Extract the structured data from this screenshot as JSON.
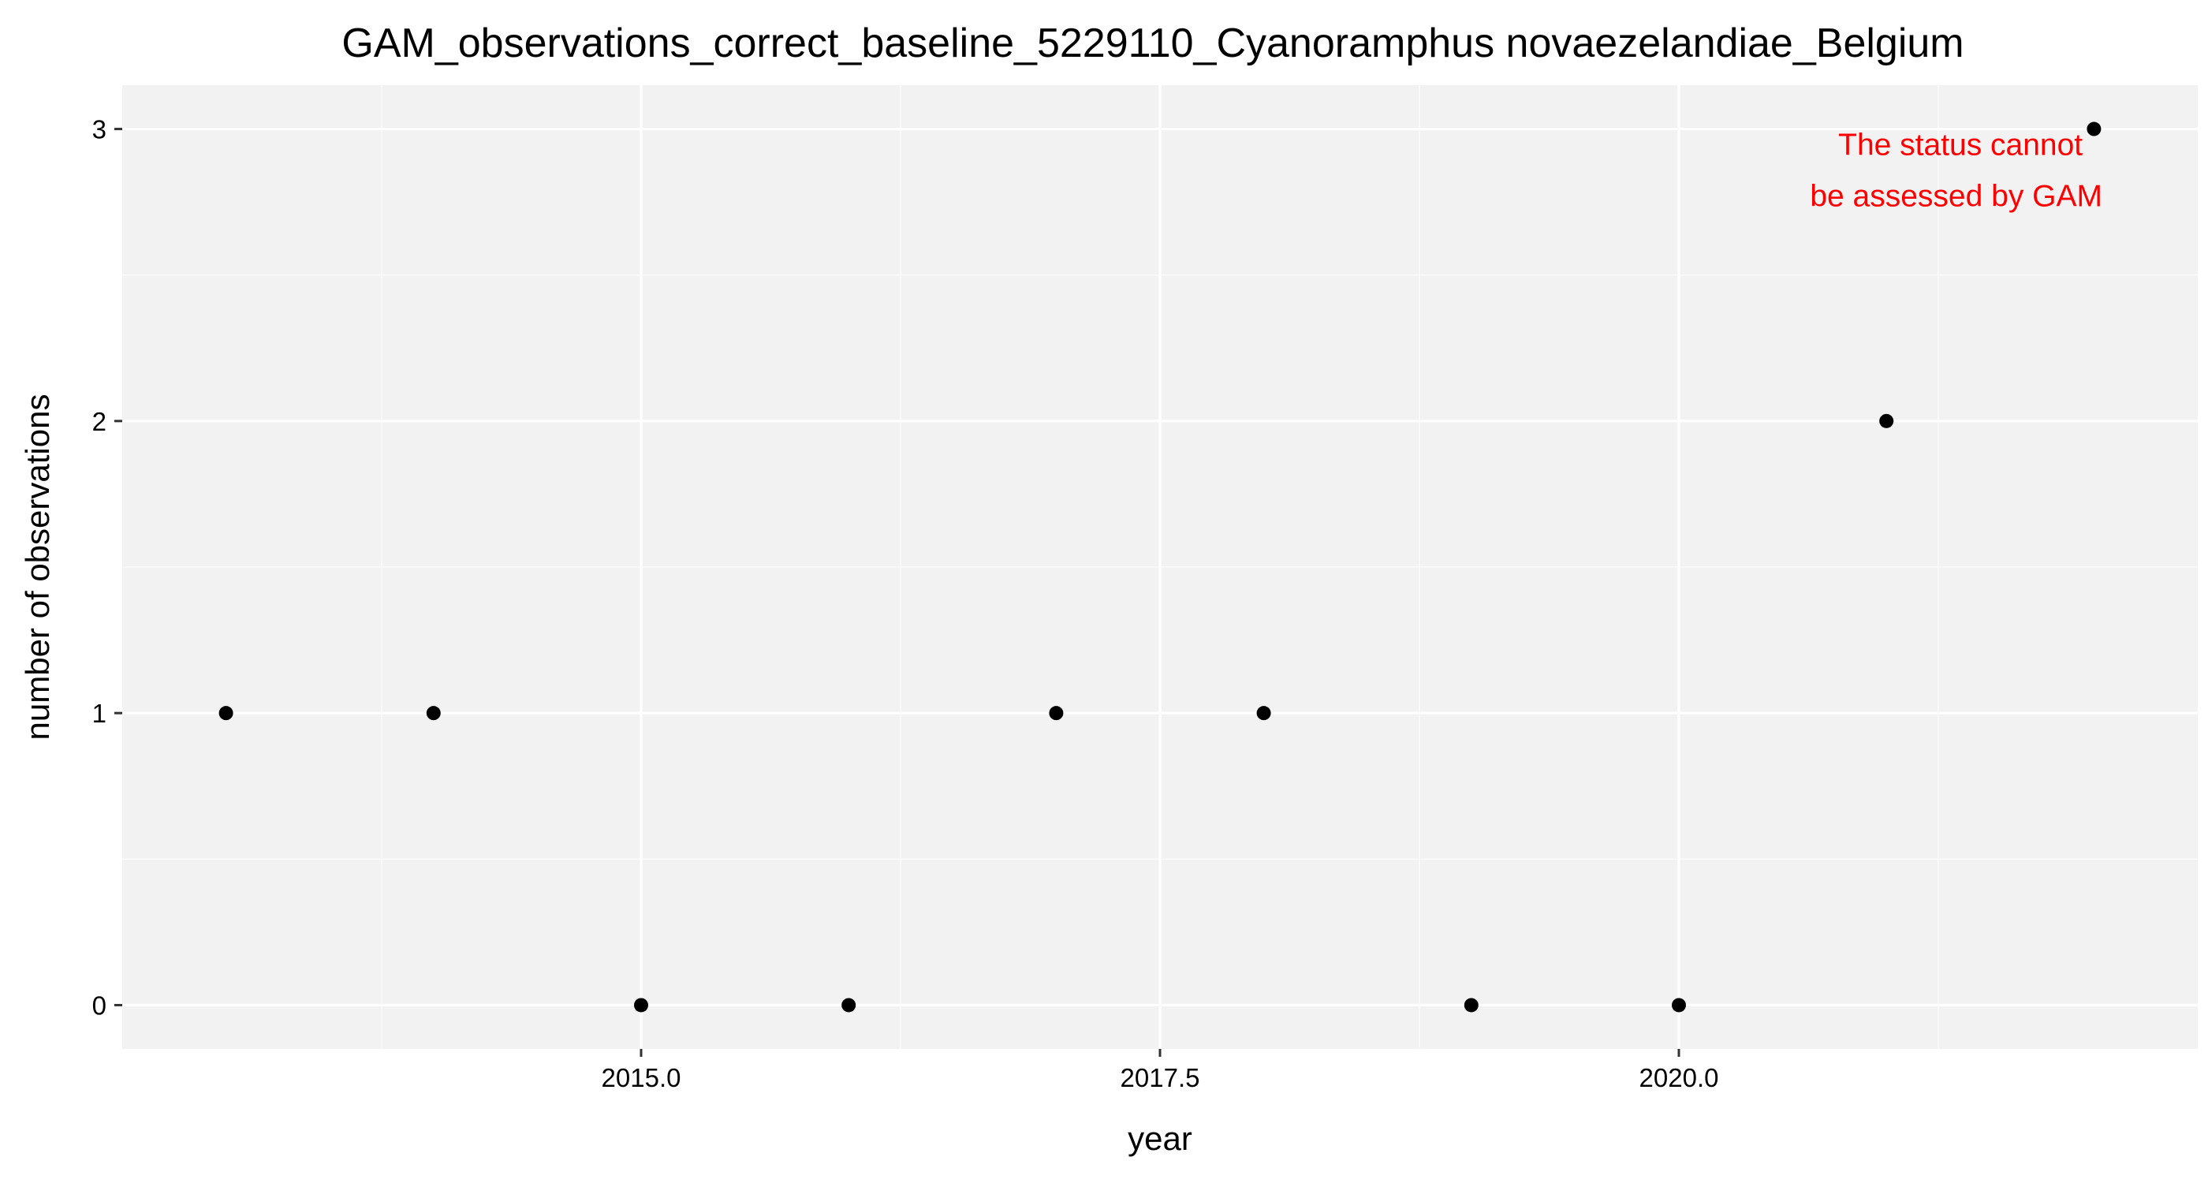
{
  "chart_data": {
    "type": "scatter",
    "title": "GAM_observations_correct_baseline_5229110_Cyanoramphus novaezelandiae_Belgium",
    "xlabel": "year",
    "ylabel": "number of observations",
    "xlim": [
      2012.5,
      2022.5
    ],
    "ylim": [
      -0.15,
      3.15
    ],
    "x_ticks": [
      2015,
      2017.5,
      2020
    ],
    "x_tick_labels": [
      "2015.0",
      "2017.5",
      "2020.0"
    ],
    "x_minor_ticks": [
      2013.75,
      2016.25,
      2018.75,
      2021.25
    ],
    "y_ticks": [
      0,
      1,
      2,
      3
    ],
    "y_tick_labels": [
      "0",
      "1",
      "2",
      "3"
    ],
    "y_minor_ticks": [
      0.5,
      1.5,
      2.5
    ],
    "grid": true,
    "points": [
      {
        "x": 2013,
        "y": 1
      },
      {
        "x": 2014,
        "y": 1
      },
      {
        "x": 2015,
        "y": 0
      },
      {
        "x": 2016,
        "y": 0
      },
      {
        "x": 2017,
        "y": 1
      },
      {
        "x": 2018,
        "y": 1
      },
      {
        "x": 2019,
        "y": 0
      },
      {
        "x": 2020,
        "y": 0
      },
      {
        "x": 2021,
        "y": 2
      },
      {
        "x": 2022,
        "y": 3
      }
    ],
    "annotation": {
      "lines": [
        "The status cannot",
        "be assessed by GAM"
      ],
      "color": "#ff0000"
    },
    "colors": {
      "panel_background": "#f2f2f2",
      "grid_major": "#ffffff",
      "grid_minor": "#fafafa",
      "point": "#000000",
      "tick": "#333333"
    }
  }
}
